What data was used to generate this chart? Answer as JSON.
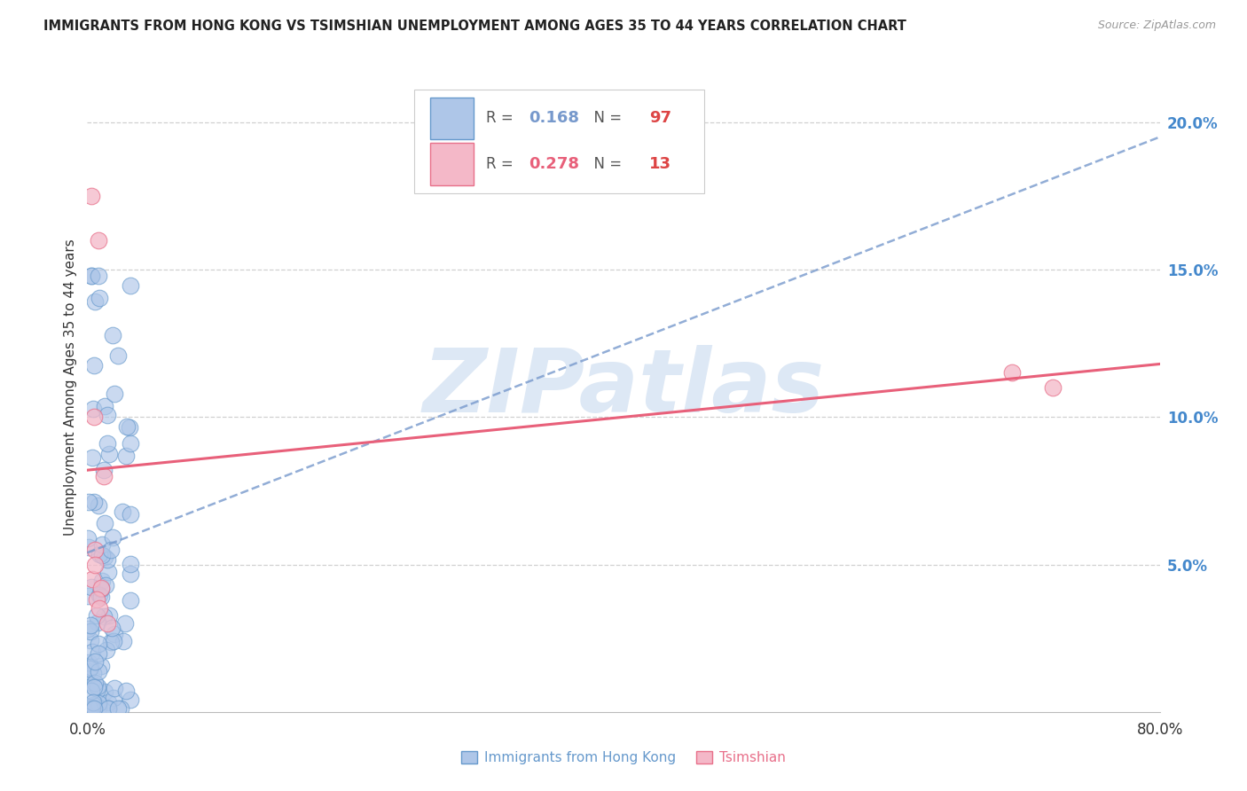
{
  "title": "IMMIGRANTS FROM HONG KONG VS TSIMSHIAN UNEMPLOYMENT AMONG AGES 35 TO 44 YEARS CORRELATION CHART",
  "source": "Source: ZipAtlas.com",
  "ylabel": "Unemployment Among Ages 35 to 44 years",
  "xlim": [
    0.0,
    0.8
  ],
  "ylim": [
    0.0,
    0.22
  ],
  "xticks": [
    0.0,
    0.1,
    0.2,
    0.3,
    0.4,
    0.5,
    0.6,
    0.7,
    0.8
  ],
  "xticklabels": [
    "0.0%",
    "",
    "",
    "",
    "",
    "",
    "",
    "",
    "80.0%"
  ],
  "ytick_right_labels": [
    "5.0%",
    "10.0%",
    "15.0%",
    "20.0%"
  ],
  "ytick_right_values": [
    0.05,
    0.1,
    0.15,
    0.2
  ],
  "legend1_label": "Immigrants from Hong Kong",
  "legend2_label": "Tsimshian",
  "R1": "0.168",
  "N1": "97",
  "R2": "0.278",
  "N2": "13",
  "blue_face_color": "#aec6e8",
  "blue_edge_color": "#6699cc",
  "pink_face_color": "#f4b8c8",
  "pink_edge_color": "#e8708a",
  "blue_line_color": "#7799cc",
  "pink_line_color": "#e8607a",
  "grid_color": "#d0d0d0",
  "watermark_color": "#dde8f5",
  "title_color": "#222222",
  "right_tick_color": "#4488cc",
  "blue_line_x0": 0.0,
  "blue_line_x1": 0.8,
  "blue_line_y0": 0.054,
  "blue_line_y1": 0.195,
  "pink_line_x0": 0.0,
  "pink_line_x1": 0.8,
  "pink_line_y0": 0.082,
  "pink_line_y1": 0.118
}
